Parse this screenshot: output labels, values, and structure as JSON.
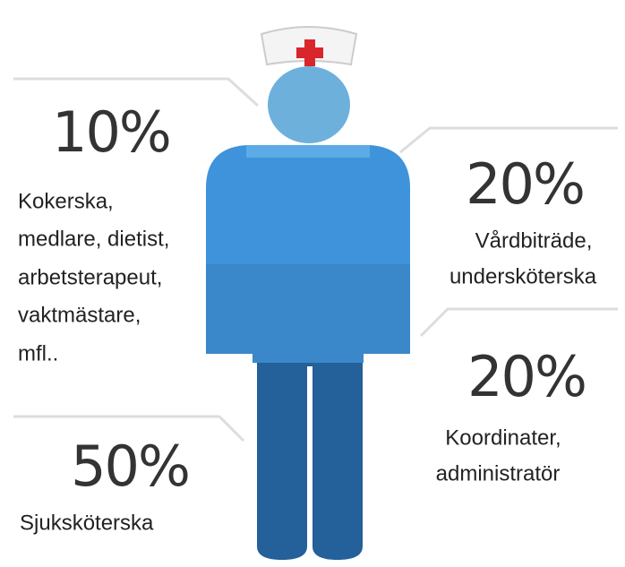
{
  "groups": [
    {
      "percent": "10%",
      "lines": [
        "Kokerska,",
        "medlare, dietist,",
        "arbetsterapeut,",
        "vaktmästare,",
        "mfl.."
      ]
    },
    {
      "percent": "20%",
      "lines": [
        "Vårdbiträde,",
        "undersköterska"
      ]
    },
    {
      "percent": "20%",
      "lines": [
        "Koordinater,",
        "administratör"
      ]
    },
    {
      "percent": "50%",
      "lines": [
        "Sjuksköterska"
      ]
    }
  ]
}
